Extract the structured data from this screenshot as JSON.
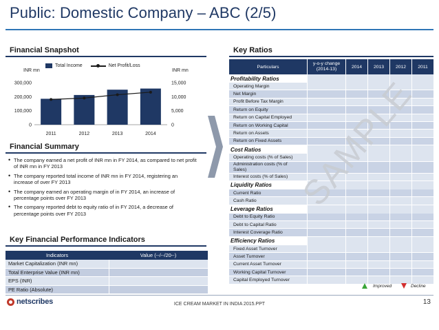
{
  "slide": {
    "title": "Public: Domestic Company – ABC (2/5)",
    "footer": "ICE CREAM MARKET IN INDIA 2015.PPT",
    "page_number": "13",
    "logo": "netscribes",
    "watermark": "SAMPLE"
  },
  "snapshot": {
    "heading": "Financial Snapshot",
    "left_unit": "INR mn",
    "right_unit": "INR mn",
    "legend": [
      "Total Income",
      "Net Profit/Loss"
    ]
  },
  "chart_data": {
    "type": "bar",
    "categories": [
      "2011",
      "2012",
      "2013",
      "2014"
    ],
    "series": [
      {
        "name": "Total Income",
        "type": "bar",
        "axis": "left",
        "values": [
          185000,
          212000,
          250000,
          258000
        ],
        "color": "#1f3864"
      },
      {
        "name": "Net Profit/Loss",
        "type": "line",
        "axis": "right",
        "values": [
          9000,
          9500,
          10700,
          11600
        ],
        "color": "#1a1a1a"
      }
    ],
    "left_axis": {
      "ylim": [
        0,
        300000
      ],
      "ticks": [
        "0",
        "100,000",
        "200,000",
        "300,000"
      ]
    },
    "right_axis": {
      "ylim": [
        0,
        15000
      ],
      "ticks": [
        "0",
        "5,000",
        "10,000",
        "15,000"
      ]
    },
    "legend_position": "top",
    "grid": false
  },
  "summary": {
    "heading": "Financial Summary",
    "bullets": [
      "The company earned a net profit of INR mn in FY 2014, as compared to net profit of INR mn in FY 2013",
      "The company reported total income of INR mn in FY 2014, registering an increase of over FY 2013",
      "The company earned an operating margin of in FY 2014, an increase of percentage points over FY 2013",
      "The company reported debt to equity ratio of in FY 2014, a decrease of percentage points over FY 2013"
    ]
  },
  "kpi": {
    "heading": "Key Financial Performance Indicators",
    "col1": "Indicators",
    "col2": "Value (--/--/20--)",
    "rows": [
      "Market Capitalization (INR mn)",
      "Total Enterprise Value (INR mn)",
      "EPS (INR)",
      "PE Ratio (Absolute)"
    ]
  },
  "ratios": {
    "heading": "Key Ratios",
    "col_particulars": "Particulars",
    "col_yoy": "y-o-y change (2014-13)",
    "years": [
      "2014",
      "2013",
      "2012",
      "2011"
    ],
    "groups": [
      {
        "name": "Profitability Ratios",
        "items": [
          "Operating Margin",
          "Net Margin",
          "Profit Before Tax Margin",
          "Return on Equity",
          "Return on Capital Employed",
          "Return on Working Capital",
          "Return on Assets",
          "Return on Fixed Assets"
        ]
      },
      {
        "name": "Cost Ratios",
        "items": [
          "Operating costs (% of Sales)",
          "Administration costs (% of Sales)",
          "Interest costs (% of Sales)"
        ]
      },
      {
        "name": "Liquidity Ratios",
        "items": [
          "Current Ratio",
          "Cash Ratio"
        ]
      },
      {
        "name": "Leverage Ratios",
        "items": [
          "Debt to Equity Ratio",
          "Debt to Capital Ratio",
          "Interest Coverage Ratio"
        ]
      },
      {
        "name": "Efficiency Ratios",
        "items": [
          "Fixed Asset Turnover",
          "Asset Turnover",
          "Current Asset Turnover",
          "Working Capital Turnover",
          "Capital Employed Turnover"
        ]
      }
    ],
    "legend_improved": "Improved",
    "legend_decline": "Decline",
    "improved_color": "#3aa539",
    "decline_color": "#d32f2f"
  }
}
